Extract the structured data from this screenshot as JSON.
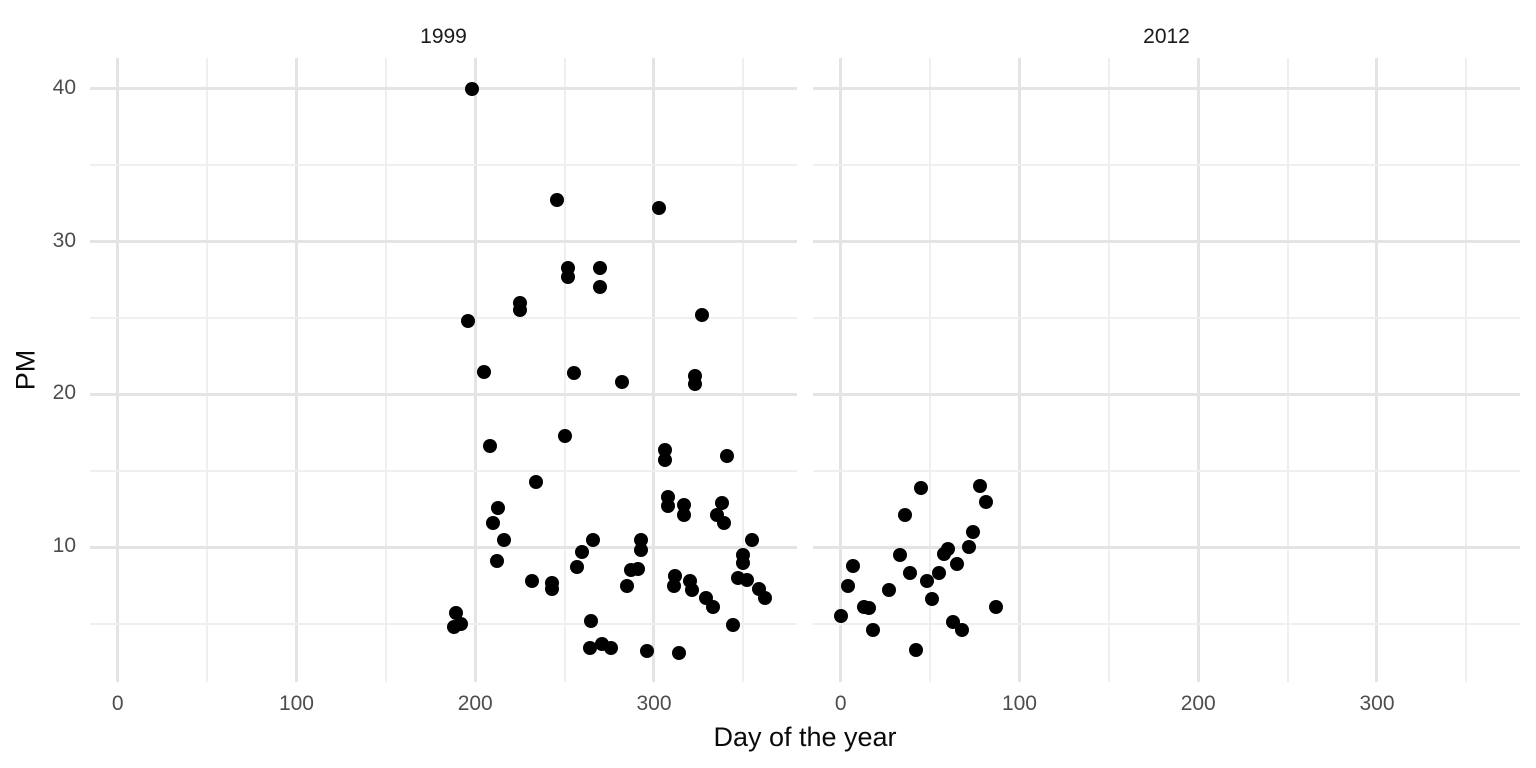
{
  "chart_data": {
    "type": "scatter",
    "title": "",
    "xlabel": "Day of the year",
    "ylabel": "PM",
    "legend": "none",
    "grid": "major+minor",
    "point_color": "#000000",
    "background_color": "#ffffff",
    "grid_major_color": "#e4e4e4",
    "grid_minor_color": "#efefef",
    "tick_label_color": "#4d4d4d",
    "axis_title_color": "#0a0a0a",
    "facet_label_color": "#1a1a1a",
    "xlim": [
      -15.5,
      380
    ],
    "ylim": [
      1.2,
      42
    ],
    "x_major_ticks": [
      0,
      100,
      200,
      300
    ],
    "x_minor_ticks": [
      50,
      150,
      250,
      350
    ],
    "y_major_ticks": [
      10,
      20,
      30,
      40
    ],
    "y_minor_ticks": [
      5,
      15,
      25,
      35
    ],
    "facets": [
      {
        "label": "1999",
        "points": [
          [
            198,
            40.0
          ],
          [
            246,
            32.7
          ],
          [
            303,
            32.2
          ],
          [
            252,
            28.3
          ],
          [
            252,
            27.7
          ],
          [
            270,
            28.3
          ],
          [
            270,
            27.0
          ],
          [
            225,
            26.0
          ],
          [
            225,
            25.5
          ],
          [
            196,
            24.8
          ],
          [
            327,
            25.2
          ],
          [
            205,
            21.5
          ],
          [
            255,
            21.4
          ],
          [
            282,
            20.8
          ],
          [
            323,
            21.2
          ],
          [
            323,
            20.7
          ],
          [
            250,
            17.3
          ],
          [
            208,
            16.6
          ],
          [
            306,
            16.4
          ],
          [
            306,
            15.7
          ],
          [
            341,
            16.0
          ],
          [
            234,
            14.3
          ],
          [
            213,
            12.6
          ],
          [
            308,
            13.3
          ],
          [
            308,
            12.7
          ],
          [
            317,
            12.8
          ],
          [
            317,
            12.1
          ],
          [
            338,
            12.9
          ],
          [
            335,
            12.1
          ],
          [
            339,
            11.6
          ],
          [
            210,
            11.6
          ],
          [
            216,
            10.5
          ],
          [
            355,
            10.5
          ],
          [
            266,
            10.5
          ],
          [
            260,
            9.7
          ],
          [
            293,
            10.5
          ],
          [
            293,
            9.8
          ],
          [
            350,
            9.5
          ],
          [
            350,
            9.0
          ],
          [
            212,
            9.1
          ],
          [
            257,
            8.7
          ],
          [
            232,
            7.8
          ],
          [
            243,
            7.7
          ],
          [
            243,
            7.3
          ],
          [
            287,
            8.5
          ],
          [
            291,
            8.6
          ],
          [
            285,
            7.5
          ],
          [
            312,
            8.1
          ],
          [
            311,
            7.5
          ],
          [
            320,
            7.8
          ],
          [
            321,
            7.2
          ],
          [
            329,
            6.7
          ],
          [
            333,
            6.1
          ],
          [
            347,
            8.0
          ],
          [
            352,
            7.9
          ],
          [
            359,
            7.3
          ],
          [
            362,
            6.7
          ],
          [
            189,
            5.7
          ],
          [
            192,
            5.0
          ],
          [
            188,
            4.8
          ],
          [
            265,
            5.2
          ],
          [
            344,
            4.9
          ],
          [
            264,
            3.4
          ],
          [
            271,
            3.7
          ],
          [
            276,
            3.4
          ],
          [
            296,
            3.2
          ],
          [
            314,
            3.1
          ]
        ]
      },
      {
        "label": "2012",
        "points": [
          [
            45,
            13.9
          ],
          [
            78,
            14.0
          ],
          [
            81,
            13.0
          ],
          [
            36,
            12.1
          ],
          [
            74,
            11.0
          ],
          [
            72,
            10.0
          ],
          [
            33,
            9.5
          ],
          [
            58,
            9.6
          ],
          [
            60,
            9.9
          ],
          [
            65,
            8.9
          ],
          [
            7,
            8.8
          ],
          [
            55,
            8.3
          ],
          [
            39,
            8.3
          ],
          [
            48,
            7.8
          ],
          [
            4,
            7.5
          ],
          [
            27,
            7.2
          ],
          [
            51,
            6.6
          ],
          [
            13,
            6.1
          ],
          [
            16,
            6.05
          ],
          [
            0,
            5.5
          ],
          [
            87,
            6.1
          ],
          [
            18,
            4.6
          ],
          [
            63,
            5.1
          ],
          [
            68,
            4.6
          ],
          [
            42,
            3.3
          ]
        ]
      }
    ]
  }
}
